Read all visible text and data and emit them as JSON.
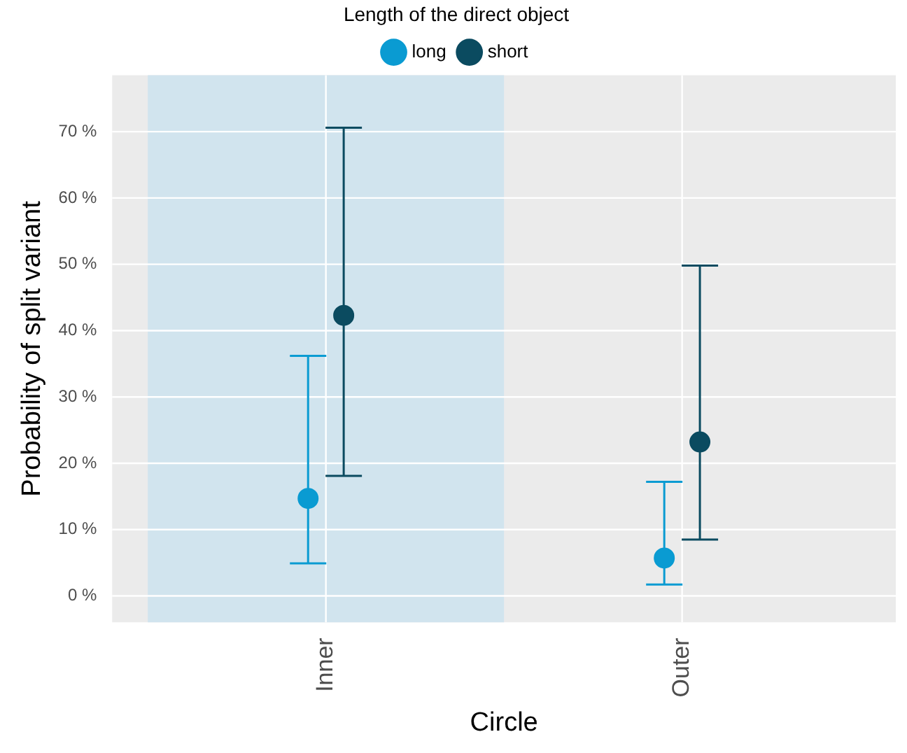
{
  "chart_data": {
    "type": "scatter",
    "xlabel": "Circle",
    "ylabel": "Probability of split variant",
    "legend_title": "Length of the direct object",
    "categories": [
      "Inner",
      "Outer"
    ],
    "series": [
      {
        "name": "long",
        "color": "#0a9bd2",
        "values": [
          14.7,
          5.7
        ],
        "errors": [
          [
            4.9,
            36.2
          ],
          [
            1.7,
            17.2
          ]
        ]
      },
      {
        "name": "short",
        "color": "#0b4b60",
        "values": [
          42.3,
          23.2
        ],
        "errors": [
          [
            18.1,
            70.6
          ],
          [
            8.5,
            49.8
          ]
        ]
      }
    ],
    "ylim": [
      -4,
      78.5
    ],
    "yticks": [
      {
        "value": 0,
        "label": "0 %"
      },
      {
        "value": 10,
        "label": "10 %"
      },
      {
        "value": 20,
        "label": "20 %"
      },
      {
        "value": 30,
        "label": "30 %"
      },
      {
        "value": 40,
        "label": "40 %"
      },
      {
        "value": 50,
        "label": "50 %"
      },
      {
        "value": 60,
        "label": "60 %"
      },
      {
        "value": 70,
        "label": "70 %"
      }
    ],
    "bands": [
      {
        "axis": "x",
        "from": "Inner",
        "to": "Inner",
        "color": "#d1e4ee"
      }
    ],
    "grid": true,
    "legend": "top",
    "marker": "circle"
  }
}
